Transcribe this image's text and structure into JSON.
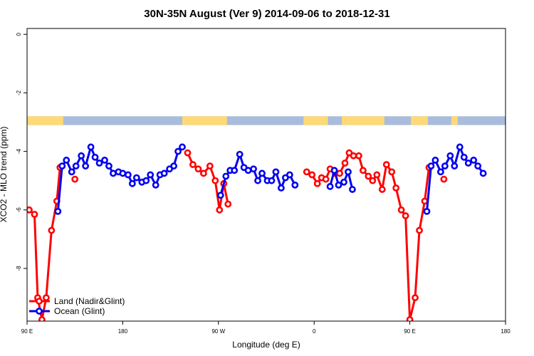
{
  "chart_data": {
    "type": "line",
    "title": "30N-35N August (Ver 9)   2014-09-06 to 2018-12-31",
    "xlabel": "Longitude (deg E)",
    "ylabel": "XCO2 - MLO trend (ppm)",
    "xlim": [
      90,
      540
    ],
    "ylim": [
      -9.8,
      0.2
    ],
    "x_ticks": [
      {
        "value": 90,
        "label": "90 E"
      },
      {
        "value": 180,
        "label": "180"
      },
      {
        "value": 270,
        "label": "90 W"
      },
      {
        "value": 360,
        "label": "0"
      },
      {
        "value": 450,
        "label": "90 E"
      },
      {
        "value": 540,
        "label": "180"
      }
    ],
    "y_ticks": [
      {
        "value": 0,
        "label": "0"
      },
      {
        "value": -2,
        "label": "-2"
      },
      {
        "value": -4,
        "label": "-4"
      },
      {
        "value": -6,
        "label": "-6"
      },
      {
        "value": -8,
        "label": "-8"
      }
    ],
    "land_mask": {
      "y_range": [
        -3.1,
        -2.8
      ],
      "land_color": "#ffd977",
      "ocean_color": "#a9bcdb",
      "land_segments": [
        [
          90,
          124
        ],
        [
          236,
          278
        ],
        [
          350,
          373
        ],
        [
          386,
          426
        ],
        [
          451,
          467
        ],
        [
          489,
          495
        ]
      ]
    },
    "legend": {
      "position": "bottom-left",
      "entries": [
        {
          "label": "Land (Nadir&Glint)",
          "color": "#ff0000"
        },
        {
          "label": "Ocean (Glint)",
          "color": "#0000ee"
        }
      ]
    },
    "series": [
      {
        "name": "Land (Nadir&Glint)",
        "color": "#ff0000",
        "segments": [
          [
            [
              92,
              -6.0
            ],
            [
              97,
              -6.15
            ],
            [
              100,
              -9.0
            ],
            [
              104,
              -9.75
            ],
            [
              108,
              -9.0
            ],
            [
              113,
              -6.7
            ],
            [
              118,
              -5.7
            ],
            [
              121,
              -4.55
            ]
          ],
          [
            [
              135,
              -4.95
            ]
          ],
          [
            [
              241,
              -4.05
            ],
            [
              246,
              -4.45
            ],
            [
              251,
              -4.6
            ],
            [
              256,
              -4.75
            ],
            [
              262,
              -4.5
            ],
            [
              267,
              -5.0
            ],
            [
              271,
              -6.0
            ],
            [
              275,
              -5.1
            ],
            [
              279,
              -5.8
            ]
          ],
          [
            [
              353,
              -4.7
            ],
            [
              358,
              -4.8
            ],
            [
              363,
              -5.1
            ],
            [
              367,
              -4.9
            ],
            [
              371,
              -4.95
            ],
            [
              375,
              -4.6
            ],
            [
              380,
              -4.75
            ],
            [
              384,
              -4.75
            ],
            [
              389,
              -4.4
            ],
            [
              393,
              -4.05
            ],
            [
              397,
              -4.15
            ],
            [
              402,
              -4.15
            ],
            [
              406,
              -4.65
            ],
            [
              411,
              -4.85
            ],
            [
              415,
              -5.0
            ],
            [
              419,
              -4.8
            ],
            [
              424,
              -5.3
            ],
            [
              428,
              -4.45
            ],
            [
              433,
              -4.7
            ],
            [
              437,
              -5.25
            ],
            [
              442,
              -6.0
            ],
            [
              446,
              -6.2
            ],
            [
              450,
              -9.75
            ],
            [
              455,
              -9.0
            ],
            [
              459,
              -6.7
            ],
            [
              464,
              -5.7
            ],
            [
              468,
              -4.55
            ]
          ],
          [
            [
              482,
              -4.95
            ]
          ]
        ]
      },
      {
        "name": "Ocean (Glint)",
        "color": "#0000ee",
        "segments": [
          [
            [
              119,
              -6.05
            ],
            [
              123,
              -4.5
            ],
            [
              127,
              -4.3
            ],
            [
              132,
              -4.7
            ],
            [
              136,
              -4.5
            ],
            [
              141,
              -4.15
            ],
            [
              145,
              -4.5
            ],
            [
              150,
              -3.85
            ],
            [
              154,
              -4.2
            ],
            [
              158,
              -4.4
            ],
            [
              163,
              -4.3
            ],
            [
              167,
              -4.5
            ],
            [
              171,
              -4.75
            ],
            [
              176,
              -4.7
            ],
            [
              180,
              -4.75
            ],
            [
              185,
              -4.8
            ],
            [
              189,
              -5.1
            ],
            [
              193,
              -4.9
            ],
            [
              198,
              -5.05
            ],
            [
              202,
              -5.0
            ],
            [
              206,
              -4.8
            ],
            [
              211,
              -5.15
            ],
            [
              215,
              -4.8
            ],
            [
              219,
              -4.75
            ],
            [
              224,
              -4.6
            ],
            [
              228,
              -4.5
            ],
            [
              232,
              -4.0
            ],
            [
              236,
              -3.85
            ]
          ],
          [
            [
              272,
              -5.5
            ],
            [
              277,
              -4.85
            ],
            [
              281,
              -4.65
            ],
            [
              285,
              -4.65
            ],
            [
              290,
              -4.1
            ],
            [
              294,
              -4.55
            ],
            [
              298,
              -4.65
            ],
            [
              303,
              -4.6
            ],
            [
              307,
              -5.0
            ],
            [
              311,
              -4.75
            ],
            [
              316,
              -5.0
            ],
            [
              320,
              -5.0
            ],
            [
              324,
              -4.7
            ],
            [
              329,
              -5.25
            ],
            [
              333,
              -4.9
            ],
            [
              337,
              -4.8
            ],
            [
              342,
              -5.15
            ]
          ],
          [
            [
              375,
              -5.2
            ],
            [
              379,
              -4.65
            ],
            [
              383,
              -5.15
            ],
            [
              388,
              -5.05
            ],
            [
              392,
              -4.7
            ],
            [
              396,
              -5.3
            ]
          ],
          [
            [
              466,
              -6.05
            ],
            [
              470,
              -4.5
            ],
            [
              474,
              -4.3
            ],
            [
              479,
              -4.7
            ],
            [
              483,
              -4.5
            ],
            [
              488,
              -4.15
            ],
            [
              492,
              -4.5
            ],
            [
              497,
              -3.85
            ],
            [
              501,
              -4.2
            ],
            [
              505,
              -4.4
            ],
            [
              510,
              -4.3
            ],
            [
              514,
              -4.5
            ],
            [
              519,
              -4.75
            ]
          ]
        ]
      }
    ]
  }
}
